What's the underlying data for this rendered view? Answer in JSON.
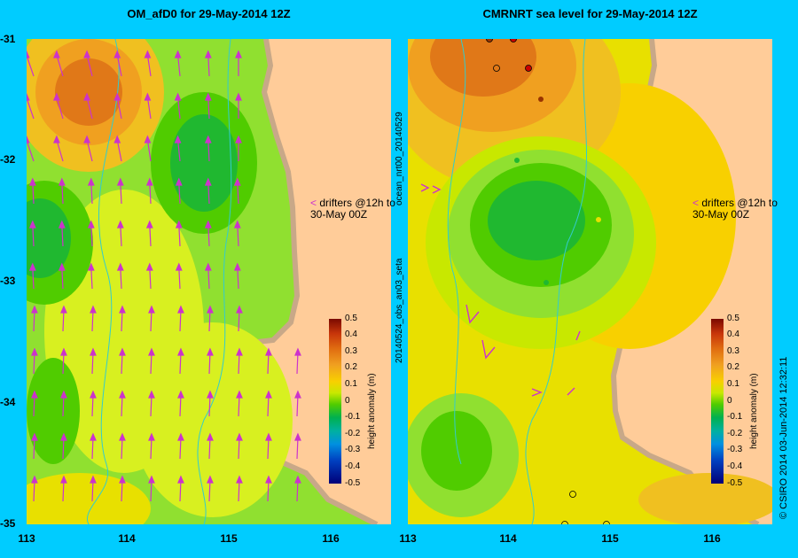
{
  "left_panel": {
    "title": "OM_afD0 for 29-May-2014 12Z",
    "annotation_line1": "drifters @12h to",
    "annotation_line2": "30-May 00Z"
  },
  "right_panel": {
    "title": "CMRNRT sea level  for 29-May-2014 12Z",
    "annotation_line1": "drifters @12h to",
    "annotation_line2": "30-May 00Z",
    "side_label_top": "ocean_nrt00_20140529",
    "side_label_bottom": "20140524_obs_an03_seta"
  },
  "axes": {
    "y_ticks": [
      "-31",
      "-32",
      "-33",
      "-34",
      "-35"
    ],
    "x_ticks": [
      "113",
      "114",
      "115",
      "116"
    ]
  },
  "colorbar": {
    "title": "height anomaly (m)",
    "labels": [
      "0.5",
      "0.4",
      "0.3",
      "0.2",
      "0.1",
      "0",
      "-0.1",
      "-0.2",
      "-0.3",
      "-0.4",
      "-0.5"
    ]
  },
  "credit": "© CSIRO 2014   03-Jun-2014 12:32:11",
  "colors": {
    "background": "#00ccff",
    "land": "#ffcc99",
    "coast": "#c8a888",
    "vectors": "#cc33cc",
    "bathymetry": "#33cccc"
  }
}
